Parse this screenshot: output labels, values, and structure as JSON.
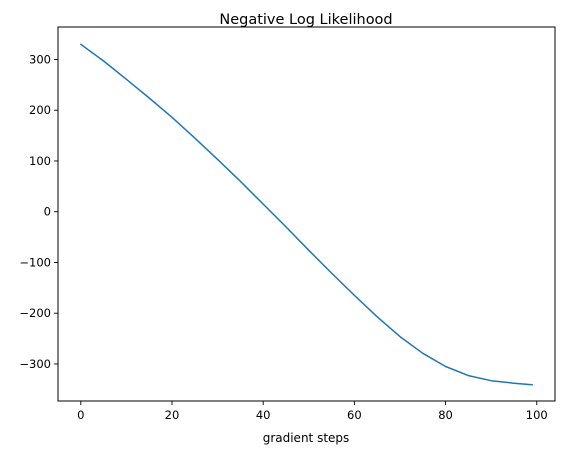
{
  "chart_data": {
    "type": "line",
    "title": "Negative Log Likelihood",
    "xlabel": "gradient steps",
    "ylabel": "",
    "xlim": [
      -5,
      104
    ],
    "ylim": [
      -373,
      364
    ],
    "grid": false,
    "legend": "none",
    "x_ticks": [
      0,
      20,
      40,
      60,
      80,
      100
    ],
    "x_tick_labels": [
      "0",
      "20",
      "40",
      "60",
      "80",
      "100"
    ],
    "y_ticks": [
      300,
      200,
      100,
      0,
      -100,
      -200,
      -300
    ],
    "y_tick_labels": [
      "300",
      "200",
      "100",
      "0",
      "−100",
      "−200",
      "−300"
    ],
    "series": [
      {
        "color": "#1f77b4",
        "x": [
          0,
          5,
          10,
          15,
          20,
          25,
          30,
          35,
          40,
          45,
          50,
          55,
          60,
          65,
          70,
          75,
          80,
          85,
          90,
          95,
          99
        ],
        "values": [
          330,
          297,
          261,
          224,
          186,
          145,
          103,
          60,
          15,
          -30,
          -76,
          -121,
          -165,
          -207,
          -246,
          -279,
          -305,
          -323,
          -333,
          -338,
          -341
        ]
      }
    ]
  }
}
